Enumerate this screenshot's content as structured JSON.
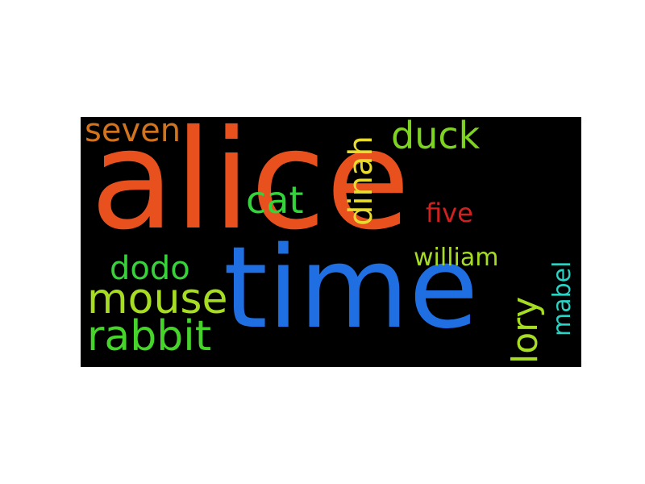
{
  "words": {
    "alice": {
      "text": "alice",
      "color": "#e8501e"
    },
    "time": {
      "text": "time",
      "color": "#1f6fe3"
    },
    "seven": {
      "text": "seven",
      "color": "#d2731e"
    },
    "duck": {
      "text": "duck",
      "color": "#7ed321"
    },
    "dinah": {
      "text": "dinah",
      "color": "#e7dc2e"
    },
    "cat": {
      "text": "cat",
      "color": "#33d33a"
    },
    "five": {
      "text": "five",
      "color": "#d12020"
    },
    "dodo": {
      "text": "dodo",
      "color": "#39d13b"
    },
    "william": {
      "text": "william",
      "color": "#a6dd22"
    },
    "mouse": {
      "text": "mouse",
      "color": "#a6dd22"
    },
    "rabbit": {
      "text": "rabbit",
      "color": "#46d42b"
    },
    "lory": {
      "text": "lory",
      "color": "#a6dd22"
    },
    "mabel": {
      "text": "mabel",
      "color": "#2ad3c4"
    }
  }
}
